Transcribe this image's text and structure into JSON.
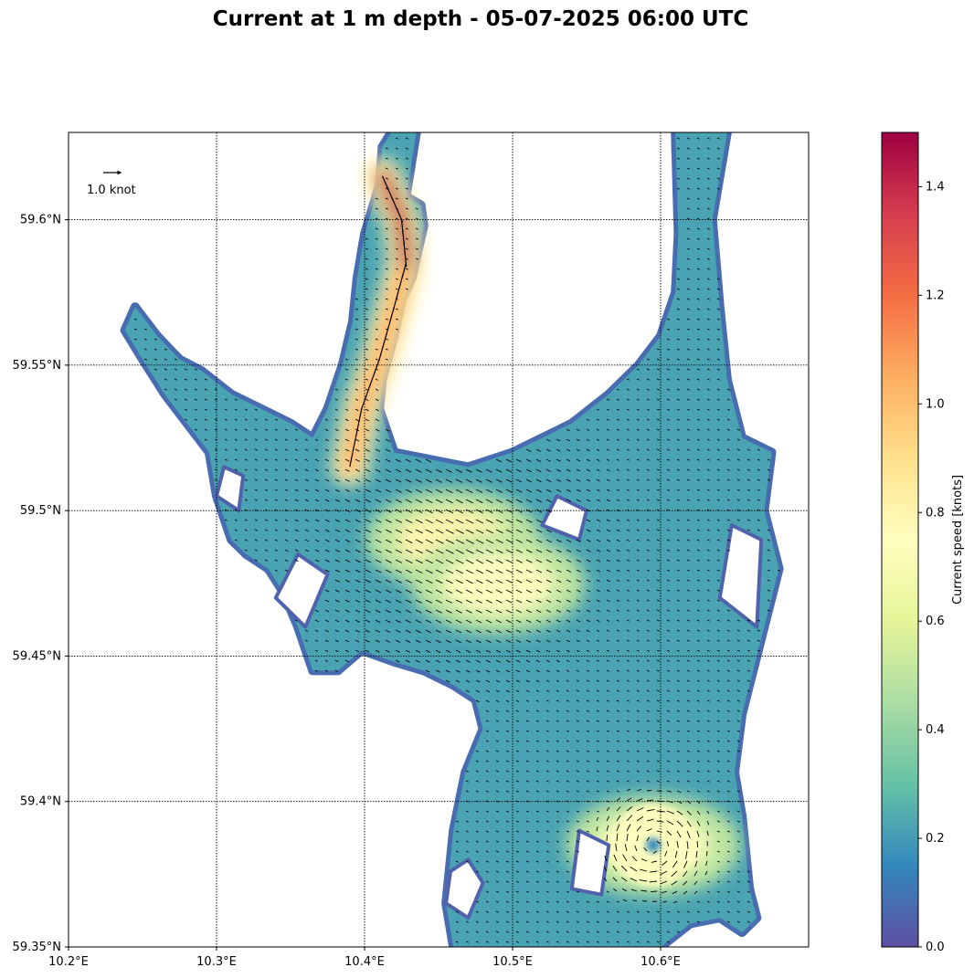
{
  "chart_data": {
    "type": "heatmap",
    "title": "Current at 1 m depth - 05-07-2025 06:00 UTC",
    "xlabel": "",
    "ylabel": "",
    "x_axis": {
      "range": [
        10.2,
        10.7
      ],
      "ticks": [
        10.2,
        10.3,
        10.4,
        10.5,
        10.6
      ],
      "tick_labels": [
        "10.2°E",
        "10.3°E",
        "10.4°E",
        "10.5°E",
        "10.6°E"
      ]
    },
    "y_axis": {
      "range": [
        59.35,
        59.63
      ],
      "ticks": [
        59.35,
        59.4,
        59.45,
        59.5,
        59.55,
        59.6
      ],
      "tick_labels": [
        "59.35°N",
        "59.4°N",
        "59.45°N",
        "59.5°N",
        "59.55°N",
        "59.6°N"
      ]
    },
    "grid": true,
    "grid_style": "dotted",
    "colorbar": {
      "label": "Current speed [knots]",
      "range": [
        0,
        1.5
      ],
      "ticks": [
        0.0,
        0.2,
        0.4,
        0.6,
        0.8,
        1.0,
        1.2,
        1.4
      ],
      "tick_labels": [
        "0.0",
        "0.2",
        "0.4",
        "0.6",
        "0.8",
        "1.0",
        "1.2",
        "1.4"
      ],
      "colormap": "Spectral_r",
      "stops": [
        "#5e4fa2",
        "#3288bd",
        "#66c2a5",
        "#abdda4",
        "#e6f598",
        "#ffffbf",
        "#fee08b",
        "#fdae61",
        "#f46d43",
        "#d53e4f",
        "#9e0142"
      ]
    },
    "quiver_key": {
      "label": "1.0 knot",
      "value": 1.0
    },
    "water_region_outline": [
      [
        10.418,
        59.63
      ],
      [
        10.435,
        59.63
      ],
      [
        10.428,
        59.608
      ],
      [
        10.438,
        59.605
      ],
      [
        10.44,
        59.598
      ],
      [
        10.432,
        59.58
      ],
      [
        10.425,
        59.572
      ],
      [
        10.42,
        59.56
      ],
      [
        10.412,
        59.545
      ],
      [
        10.41,
        59.535
      ],
      [
        10.42,
        59.52
      ],
      [
        10.44,
        59.518
      ],
      [
        10.47,
        59.515
      ],
      [
        10.5,
        59.52
      ],
      [
        10.54,
        59.53
      ],
      [
        10.565,
        59.54
      ],
      [
        10.585,
        59.55
      ],
      [
        10.6,
        59.56
      ],
      [
        10.61,
        59.575
      ],
      [
        10.612,
        59.595
      ],
      [
        10.61,
        59.63
      ],
      [
        10.645,
        59.63
      ],
      [
        10.635,
        59.6
      ],
      [
        10.64,
        59.57
      ],
      [
        10.645,
        59.545
      ],
      [
        10.655,
        59.525
      ],
      [
        10.675,
        59.52
      ],
      [
        10.67,
        59.5
      ],
      [
        10.68,
        59.48
      ],
      [
        10.67,
        59.46
      ],
      [
        10.66,
        59.44
      ],
      [
        10.655,
        59.43
      ],
      [
        10.65,
        59.41
      ],
      [
        10.655,
        59.395
      ],
      [
        10.66,
        59.37
      ],
      [
        10.665,
        59.36
      ],
      [
        10.655,
        59.355
      ],
      [
        10.64,
        59.36
      ],
      [
        10.62,
        59.358
      ],
      [
        10.6,
        59.35
      ],
      [
        10.46,
        59.35
      ],
      [
        10.455,
        59.365
      ],
      [
        10.46,
        59.39
      ],
      [
        10.468,
        59.41
      ],
      [
        10.48,
        59.425
      ],
      [
        10.475,
        59.435
      ],
      [
        10.46,
        59.44
      ],
      [
        10.44,
        59.445
      ],
      [
        10.42,
        59.448
      ],
      [
        10.398,
        59.452
      ],
      [
        10.382,
        59.445
      ],
      [
        10.365,
        59.445
      ],
      [
        10.355,
        59.46
      ],
      [
        10.345,
        59.472
      ],
      [
        10.335,
        59.48
      ],
      [
        10.32,
        59.485
      ],
      [
        10.31,
        59.49
      ],
      [
        10.3,
        59.505
      ],
      [
        10.295,
        59.52
      ],
      [
        10.28,
        59.53
      ],
      [
        10.265,
        59.54
      ],
      [
        10.25,
        59.552
      ],
      [
        10.238,
        59.562
      ],
      [
        10.245,
        59.57
      ],
      [
        10.26,
        59.56
      ],
      [
        10.275,
        59.552
      ],
      [
        10.29,
        59.548
      ],
      [
        10.31,
        59.54
      ],
      [
        10.33,
        59.535
      ],
      [
        10.35,
        59.53
      ],
      [
        10.365,
        59.525
      ],
      [
        10.375,
        59.535
      ],
      [
        10.385,
        59.55
      ],
      [
        10.392,
        59.565
      ],
      [
        10.395,
        59.58
      ],
      [
        10.4,
        59.595
      ],
      [
        10.41,
        59.612
      ],
      [
        10.412,
        59.625
      ]
    ],
    "islands": [
      [
        [
          10.455,
          59.365
        ],
        [
          10.47,
          59.36
        ],
        [
          10.48,
          59.372
        ],
        [
          10.47,
          59.38
        ],
        [
          10.458,
          59.376
        ]
      ],
      [
        [
          10.54,
          59.37
        ],
        [
          10.56,
          59.368
        ],
        [
          10.565,
          59.385
        ],
        [
          10.545,
          59.39
        ]
      ],
      [
        [
          10.52,
          59.495
        ],
        [
          10.545,
          59.49
        ],
        [
          10.55,
          59.5
        ],
        [
          10.53,
          59.505
        ]
      ],
      [
        [
          10.64,
          59.47
        ],
        [
          10.665,
          59.46
        ],
        [
          10.668,
          59.49
        ],
        [
          10.648,
          59.495
        ]
      ],
      [
        [
          10.3,
          59.505
        ],
        [
          10.315,
          59.5
        ],
        [
          10.318,
          59.512
        ],
        [
          10.305,
          59.515
        ]
      ],
      [
        [
          10.34,
          59.47
        ],
        [
          10.36,
          59.46
        ],
        [
          10.375,
          59.478
        ],
        [
          10.355,
          59.485
        ]
      ]
    ],
    "flow_features": [
      {
        "name": "channel_jet",
        "points": [
          [
            10.412,
            59.615
          ],
          [
            10.425,
            59.6
          ],
          [
            10.428,
            59.585
          ],
          [
            10.42,
            59.57
          ],
          [
            10.41,
            59.552
          ],
          [
            10.398,
            59.535
          ],
          [
            10.39,
            59.515
          ]
        ],
        "speed_knots": 1.45
      },
      {
        "name": "central_basin",
        "center": [
          10.46,
          59.49
        ],
        "speed_knots": 0.8
      },
      {
        "name": "east_outflow",
        "center": [
          10.49,
          59.475
        ],
        "speed_knots": 0.75
      },
      {
        "name": "southeast_eddy",
        "center": [
          10.595,
          59.385
        ],
        "speed_knots": 0.75
      }
    ]
  }
}
